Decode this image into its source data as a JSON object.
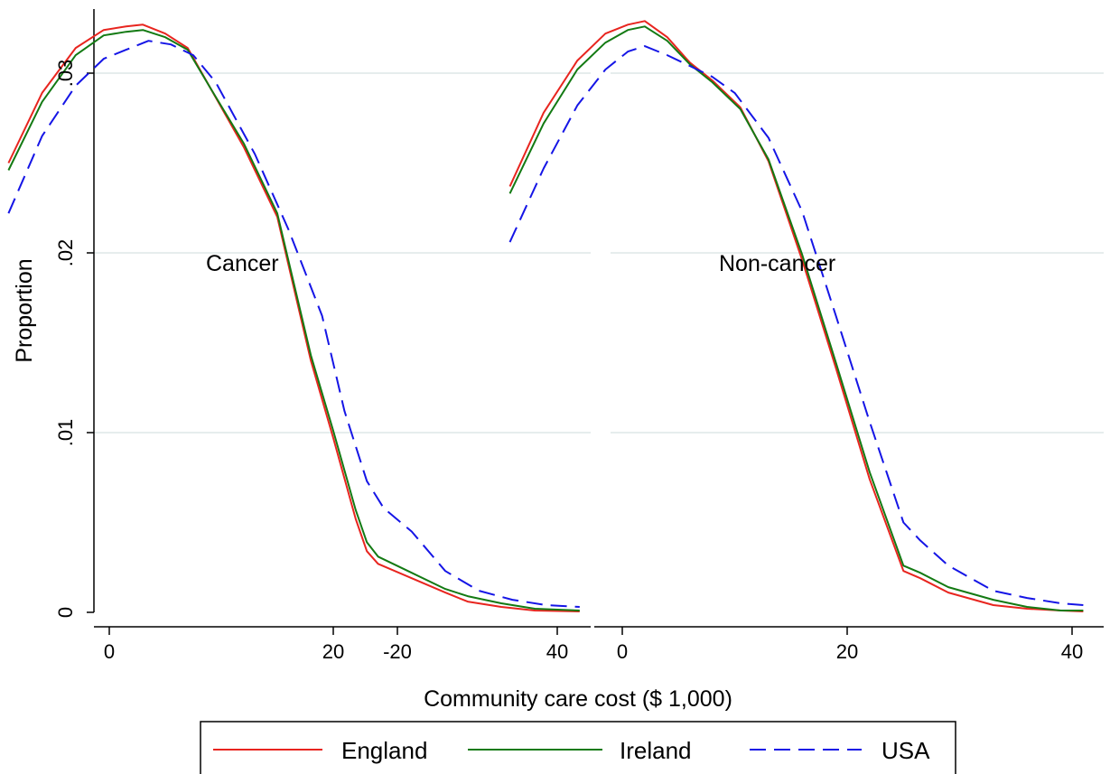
{
  "chart_data": {
    "type": "line",
    "ylabel": "Proportion",
    "xlabel": "Community care cost ($ 1,000)",
    "xlim": [
      -20,
      42
    ],
    "ylim": [
      0,
      0.033
    ],
    "xticks": [
      -20,
      0,
      20,
      40
    ],
    "xtick_labels": [
      "-20",
      "0",
      "20",
      "40"
    ],
    "yticks": [
      0,
      0.01,
      0.02,
      0.03
    ],
    "ytick_labels": [
      "0",
      ".01",
      ".02",
      ".03"
    ],
    "grid": "horizontal",
    "legend": {
      "position": "bottom",
      "entries": [
        "England",
        "Ireland",
        "USA"
      ]
    },
    "colors": {
      "England": "#e8251f",
      "Ireland": "#137a13",
      "USA": "#1515e6",
      "grid": "#e6eded"
    },
    "panels": [
      {
        "label": "Cancer",
        "series": [
          {
            "name": "England",
            "points": [
              [
                -9,
                0.025
              ],
              [
                -6,
                0.0289
              ],
              [
                -3,
                0.0314
              ],
              [
                -0.5,
                0.0324
              ],
              [
                1.5,
                0.0326
              ],
              [
                3,
                0.0327
              ],
              [
                5,
                0.0322
              ],
              [
                7,
                0.0314
              ],
              [
                9,
                0.0292
              ],
              [
                12,
                0.0259
              ],
              [
                15,
                0.022
              ],
              [
                18,
                0.014
              ],
              [
                20,
                0.0097
              ],
              [
                22,
                0.0052
              ],
              [
                23,
                0.0034
              ],
              [
                24,
                0.0027
              ],
              [
                27,
                0.0019
              ],
              [
                30,
                0.0011
              ],
              [
                32,
                0.0006
              ],
              [
                35,
                0.0003
              ],
              [
                38,
                0.0001
              ],
              [
                42,
                5e-05
              ]
            ]
          },
          {
            "name": "Ireland",
            "points": [
              [
                -9,
                0.0246
              ],
              [
                -6,
                0.0284
              ],
              [
                -3,
                0.031
              ],
              [
                -0.5,
                0.0321
              ],
              [
                1.5,
                0.0323
              ],
              [
                3,
                0.0324
              ],
              [
                5,
                0.032
              ],
              [
                7,
                0.0313
              ],
              [
                9,
                0.0292
              ],
              [
                12,
                0.0261
              ],
              [
                15,
                0.0222
              ],
              [
                18,
                0.0143
              ],
              [
                20,
                0.0101
              ],
              [
                22,
                0.0057
              ],
              [
                23,
                0.0039
              ],
              [
                24,
                0.0031
              ],
              [
                27,
                0.0022
              ],
              [
                30,
                0.0013
              ],
              [
                32,
                0.0009
              ],
              [
                35,
                0.0005
              ],
              [
                38,
                0.0002
              ],
              [
                42,
                0.0001
              ]
            ]
          },
          {
            "name": "USA",
            "points": [
              [
                -9,
                0.0222
              ],
              [
                -6,
                0.0265
              ],
              [
                -3,
                0.0293
              ],
              [
                -0.5,
                0.0308
              ],
              [
                1.5,
                0.0313
              ],
              [
                3.5,
                0.0318
              ],
              [
                5.5,
                0.0316
              ],
              [
                7.5,
                0.031
              ],
              [
                9.5,
                0.0295
              ],
              [
                13,
                0.0255
              ],
              [
                16,
                0.0213
              ],
              [
                19,
                0.0165
              ],
              [
                21,
                0.0112
              ],
              [
                23,
                0.0073
              ],
              [
                24.5,
                0.0058
              ],
              [
                27,
                0.0045
              ],
              [
                30,
                0.0023
              ],
              [
                33,
                0.0012
              ],
              [
                36,
                0.0007
              ],
              [
                39,
                0.0004
              ],
              [
                42,
                0.0003
              ]
            ]
          }
        ]
      },
      {
        "label": "Non-cancer",
        "series": [
          {
            "name": "England",
            "points": [
              [
                -10,
                0.0237
              ],
              [
                -7,
                0.0278
              ],
              [
                -4,
                0.0307
              ],
              [
                -1.5,
                0.0322
              ],
              [
                0.5,
                0.0327
              ],
              [
                2,
                0.0329
              ],
              [
                4,
                0.032
              ],
              [
                6,
                0.0306
              ],
              [
                8,
                0.0296
              ],
              [
                10.5,
                0.0281
              ],
              [
                13,
                0.0251
              ],
              [
                16,
                0.0196
              ],
              [
                19,
                0.0136
              ],
              [
                22,
                0.0074
              ],
              [
                25,
                0.0023
              ],
              [
                26.5,
                0.0019
              ],
              [
                29,
                0.0011
              ],
              [
                33,
                0.0004
              ],
              [
                36,
                0.0002
              ],
              [
                39,
                0.0001
              ],
              [
                41,
                5e-05
              ]
            ]
          },
          {
            "name": "Ireland",
            "points": [
              [
                -10,
                0.0233
              ],
              [
                -7,
                0.0272
              ],
              [
                -4,
                0.0302
              ],
              [
                -1.5,
                0.0317
              ],
              [
                0.5,
                0.0324
              ],
              [
                2,
                0.0326
              ],
              [
                4,
                0.0318
              ],
              [
                6,
                0.0305
              ],
              [
                8,
                0.0295
              ],
              [
                10.5,
                0.028
              ],
              [
                13,
                0.0252
              ],
              [
                16,
                0.0199
              ],
              [
                19,
                0.0139
              ],
              [
                22,
                0.0078
              ],
              [
                25,
                0.0026
              ],
              [
                26.5,
                0.0022
              ],
              [
                29,
                0.0014
              ],
              [
                33,
                0.0007
              ],
              [
                36,
                0.0003
              ],
              [
                39,
                0.0001
              ],
              [
                41,
                0.0001
              ]
            ]
          },
          {
            "name": "USA",
            "points": [
              [
                -10,
                0.0206
              ],
              [
                -7,
                0.0247
              ],
              [
                -4,
                0.0282
              ],
              [
                -1.5,
                0.0302
              ],
              [
                0.5,
                0.0312
              ],
              [
                2,
                0.0315
              ],
              [
                4,
                0.031
              ],
              [
                6,
                0.0304
              ],
              [
                8,
                0.0298
              ],
              [
                10,
                0.0289
              ],
              [
                13,
                0.0264
              ],
              [
                16,
                0.0223
              ],
              [
                19,
                0.0165
              ],
              [
                22,
                0.0106
              ],
              [
                25,
                0.005
              ],
              [
                26.5,
                0.004
              ],
              [
                29,
                0.0026
              ],
              [
                33,
                0.0012
              ],
              [
                36,
                0.0008
              ],
              [
                39,
                0.0005
              ],
              [
                41,
                0.0004
              ]
            ]
          }
        ]
      }
    ]
  }
}
